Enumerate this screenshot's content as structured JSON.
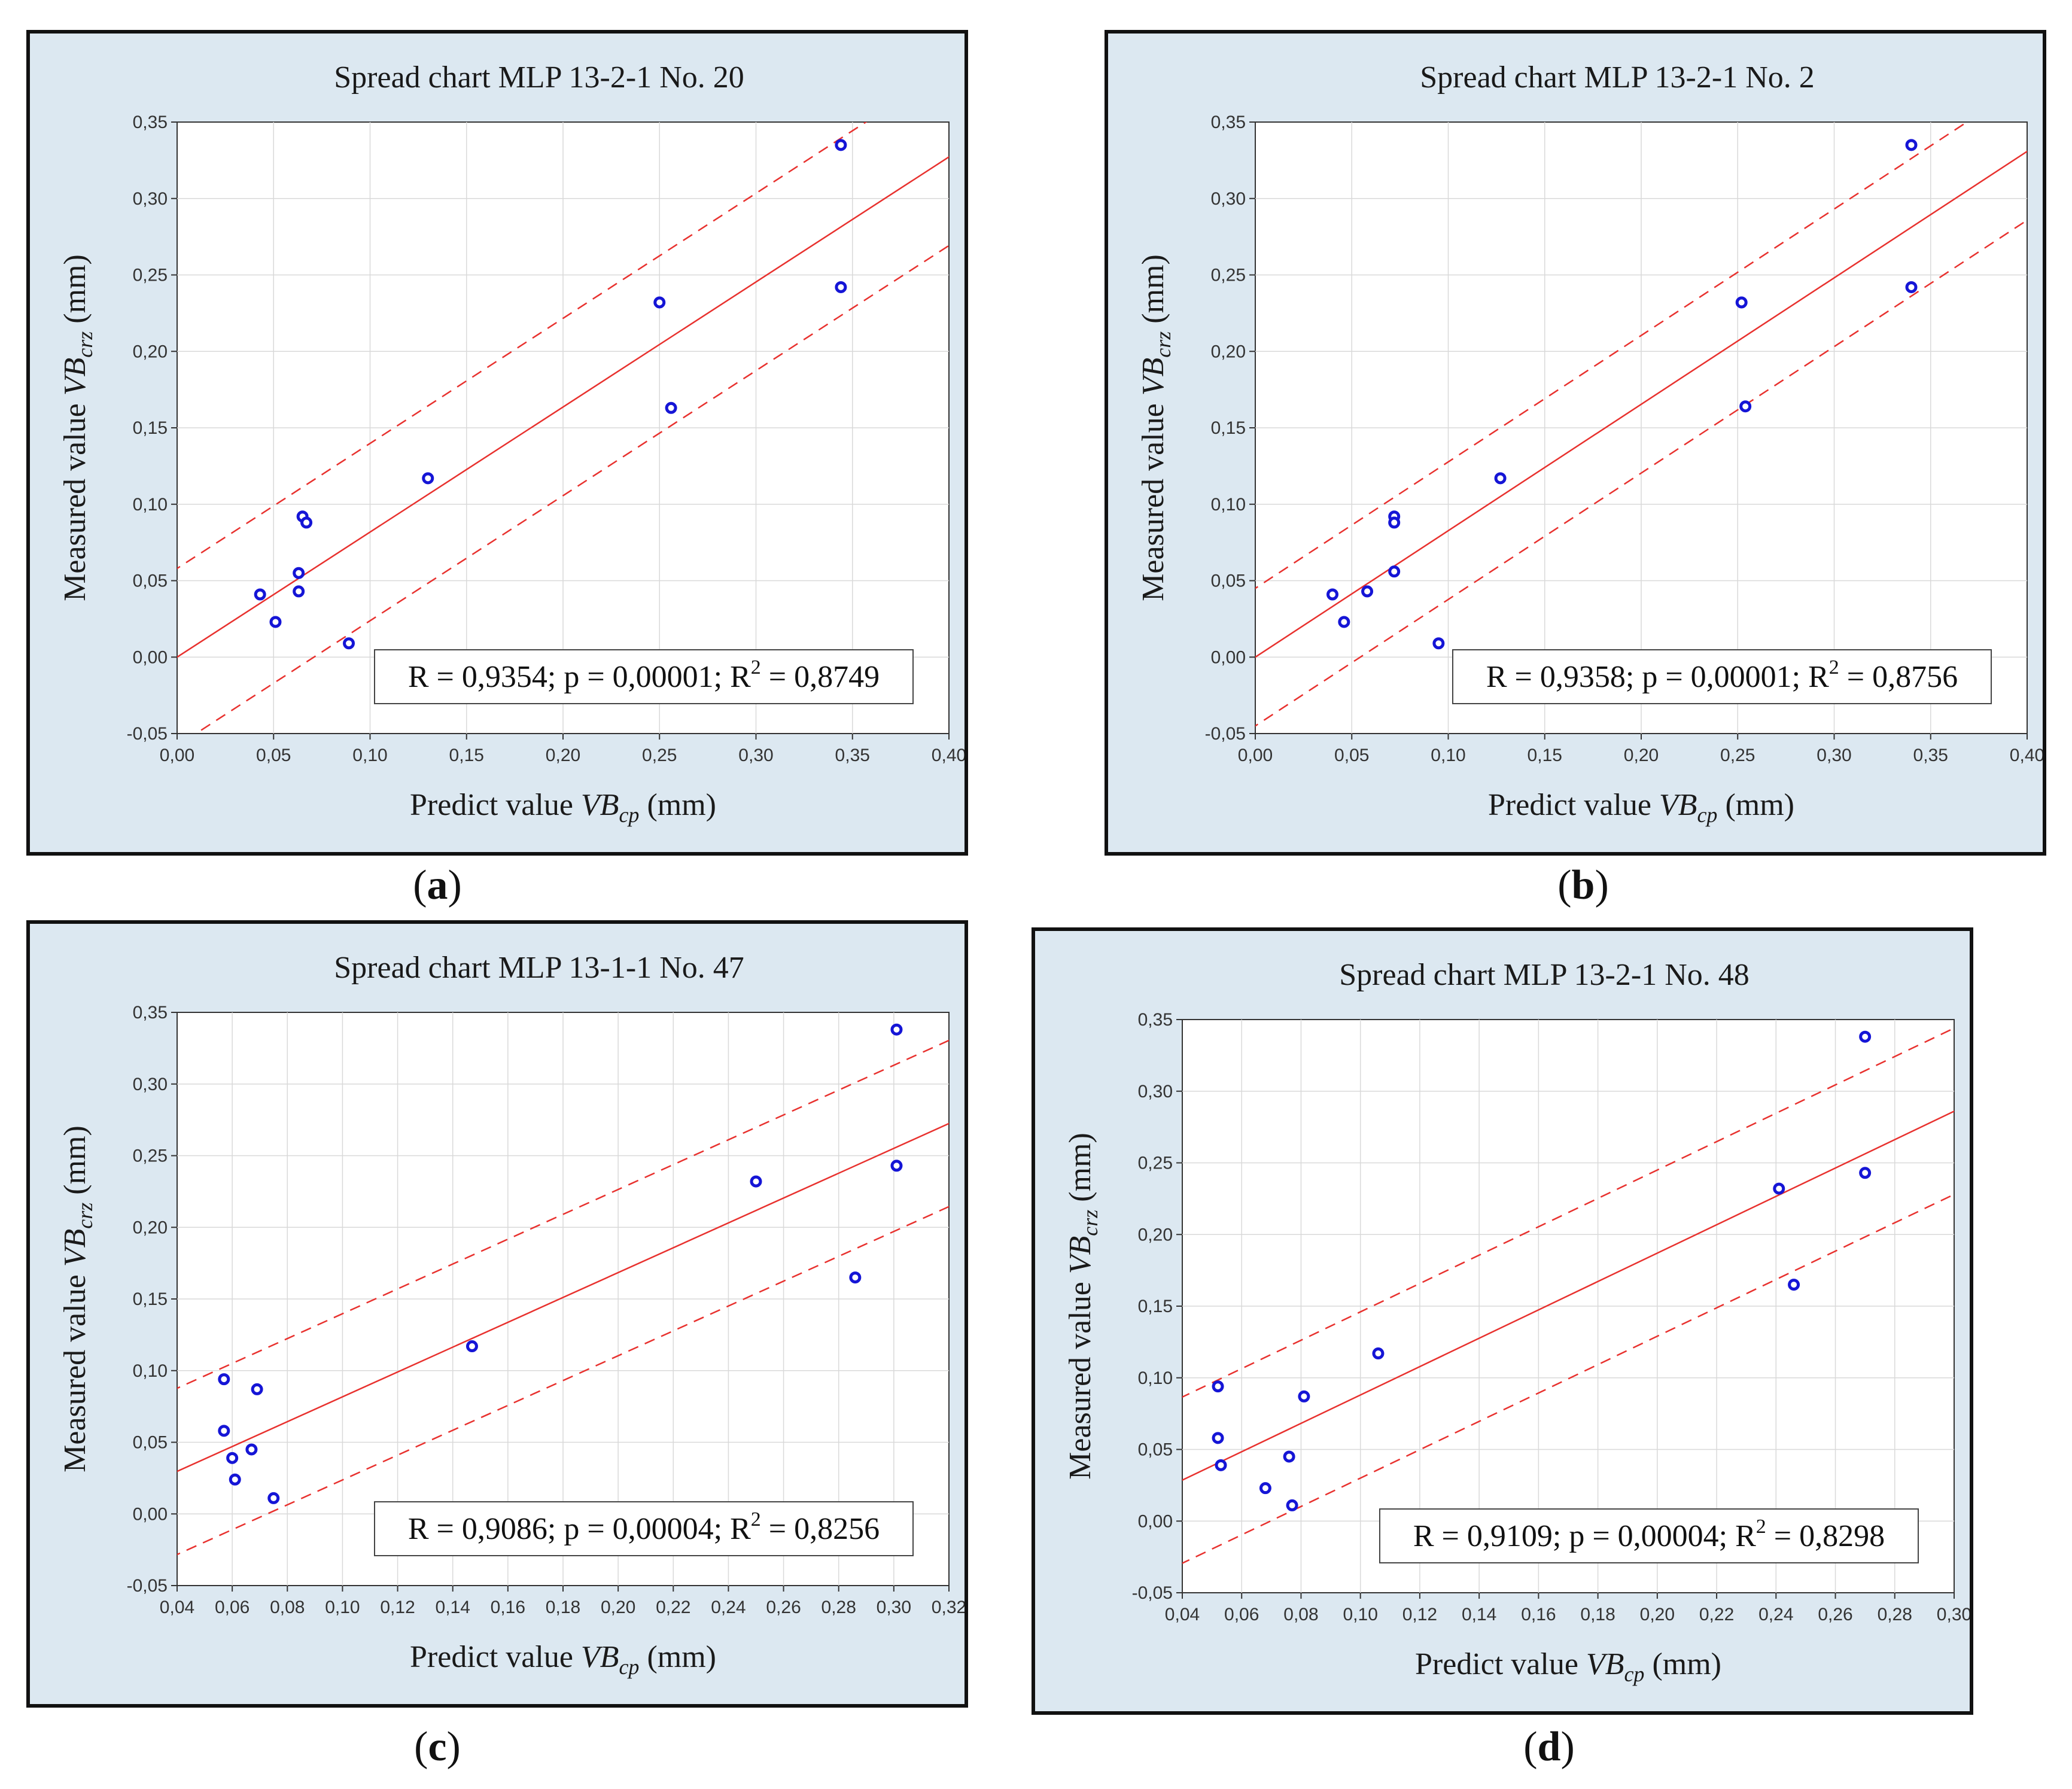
{
  "captions": [
    "a",
    "b",
    "c",
    "d"
  ],
  "chart_data": [
    {
      "type": "scatter",
      "title": "Spread chart MLP 13-2-1 No. 20",
      "xlabel": "Predict value",
      "xlabel_var": "VB",
      "xlabel_sub": "cp",
      "xlabel_unit": "(mm)",
      "ylabel": "Measured value",
      "ylabel_var": "VB",
      "ylabel_sub": "crz",
      "ylabel_unit": "(mm)",
      "xlim": [
        0,
        0.4
      ],
      "ylim": [
        -0.05,
        0.35
      ],
      "xticks": [
        0,
        0.05,
        0.1,
        0.15,
        0.2,
        0.25,
        0.3,
        0.35,
        0.4
      ],
      "yticks": [
        -0.05,
        0,
        0.05,
        0.1,
        0.15,
        0.2,
        0.25,
        0.3,
        0.35
      ],
      "xtick_labels": [
        "0,00",
        "0,05",
        "0,10",
        "0,15",
        "0,20",
        "0,25",
        "0,30",
        "0,35",
        "0,40"
      ],
      "ytick_labels": [
        "-0,05",
        "0,00",
        "0,05",
        "0,10",
        "0,15",
        "0,20",
        "0,25",
        "0,30",
        "0,35"
      ],
      "grid": true,
      "points": [
        [
          0.043,
          0.041
        ],
        [
          0.051,
          0.023
        ],
        [
          0.063,
          0.043
        ],
        [
          0.063,
          0.055
        ],
        [
          0.065,
          0.092
        ],
        [
          0.067,
          0.088
        ],
        [
          0.089,
          0.009
        ],
        [
          0.13,
          0.117
        ],
        [
          0.25,
          0.232
        ],
        [
          0.256,
          0.163
        ],
        [
          0.344,
          0.242
        ],
        [
          0.344,
          0.335
        ]
      ],
      "fit": {
        "slope": 0.818,
        "intercept": 0.0,
        "band_offset": 0.058
      },
      "stats": {
        "R": "0,9354",
        "p": "0,00001",
        "R2": "0,8749"
      },
      "stats_label_r": "R = ",
      "stats_label_p": "; p = ",
      "stats_label_r2": "; R",
      "stats_label_r2_eq": " = ",
      "stats_r2_exp": "2",
      "colors": {
        "points": "#1515d6",
        "fit": "#e8312e"
      }
    },
    {
      "type": "scatter",
      "title": "Spread chart MLP 13-2-1 No. 2",
      "xlabel": "Predict value",
      "xlabel_var": "VB",
      "xlabel_sub": "cp",
      "xlabel_unit": "(mm)",
      "ylabel": "Measured value",
      "ylabel_var": "VB",
      "ylabel_sub": "crz",
      "ylabel_unit": "(mm)",
      "xlim": [
        0,
        0.4
      ],
      "ylim": [
        -0.05,
        0.35
      ],
      "xticks": [
        0,
        0.05,
        0.1,
        0.15,
        0.2,
        0.25,
        0.3,
        0.35,
        0.4
      ],
      "yticks": [
        -0.05,
        0,
        0.05,
        0.1,
        0.15,
        0.2,
        0.25,
        0.3,
        0.35
      ],
      "xtick_labels": [
        "0,00",
        "0,05",
        "0,10",
        "0,15",
        "0,20",
        "0,25",
        "0,30",
        "0,35",
        "0,40"
      ],
      "ytick_labels": [
        "-0,05",
        "0,00",
        "0,05",
        "0,10",
        "0,15",
        "0,20",
        "0,25",
        "0,30",
        "0,35"
      ],
      "grid": true,
      "points": [
        [
          0.04,
          0.041
        ],
        [
          0.046,
          0.023
        ],
        [
          0.058,
          0.043
        ],
        [
          0.072,
          0.056
        ],
        [
          0.072,
          0.092
        ],
        [
          0.072,
          0.088
        ],
        [
          0.095,
          0.009
        ],
        [
          0.127,
          0.117
        ],
        [
          0.252,
          0.232
        ],
        [
          0.254,
          0.164
        ],
        [
          0.34,
          0.242
        ],
        [
          0.34,
          0.335
        ]
      ],
      "fit": {
        "slope": 0.827,
        "intercept": 0.0,
        "band_offset": 0.045
      },
      "stats": {
        "R": "0,9358",
        "p": "0,00001",
        "R2": "0,8756"
      },
      "stats_label_r": "R = ",
      "stats_label_p": "; p = ",
      "stats_label_r2": "; R",
      "stats_label_r2_eq": " = ",
      "stats_r2_exp": "2",
      "colors": {
        "points": "#1515d6",
        "fit": "#e8312e"
      }
    },
    {
      "type": "scatter",
      "title": "Spread chart MLP 13-1-1 No. 47",
      "xlabel": "Predict value",
      "xlabel_var": "VB",
      "xlabel_sub": "cp",
      "xlabel_unit": "(mm)",
      "ylabel": "Measured value",
      "ylabel_var": "VB",
      "ylabel_sub": "crz",
      "ylabel_unit": "(mm)",
      "xlim": [
        0.04,
        0.32
      ],
      "ylim": [
        -0.05,
        0.35
      ],
      "xticks": [
        0.04,
        0.06,
        0.08,
        0.1,
        0.12,
        0.14,
        0.16,
        0.18,
        0.2,
        0.22,
        0.24,
        0.26,
        0.28,
        0.3,
        0.32
      ],
      "yticks": [
        -0.05,
        0,
        0.05,
        0.1,
        0.15,
        0.2,
        0.25,
        0.3,
        0.35
      ],
      "xtick_labels": [
        "0,04",
        "0,06",
        "0,08",
        "0,10",
        "0,12",
        "0,14",
        "0,16",
        "0,18",
        "0,20",
        "0,22",
        "0,24",
        "0,26",
        "0,28",
        "0,30",
        "0,32"
      ],
      "ytick_labels": [
        "-0,05",
        "0,00",
        "0,05",
        "0,10",
        "0,15",
        "0,20",
        "0,25",
        "0,30",
        "0,35"
      ],
      "grid": true,
      "points": [
        [
          0.057,
          0.094
        ],
        [
          0.057,
          0.058
        ],
        [
          0.06,
          0.039
        ],
        [
          0.061,
          0.024
        ],
        [
          0.067,
          0.045
        ],
        [
          0.069,
          0.087
        ],
        [
          0.075,
          0.011
        ],
        [
          0.147,
          0.117
        ],
        [
          0.25,
          0.232
        ],
        [
          0.286,
          0.165
        ],
        [
          0.301,
          0.243
        ],
        [
          0.301,
          0.338
        ]
      ],
      "fit": {
        "slope": 0.867,
        "intercept": -0.005,
        "band_offset": 0.058
      },
      "stats": {
        "R": "0,9086",
        "p": "0,00004",
        "R2": "0,8256"
      },
      "stats_label_r": "R = ",
      "stats_label_p": "; p = ",
      "stats_label_r2": "; R",
      "stats_label_r2_eq": " = ",
      "stats_r2_exp": "2",
      "colors": {
        "points": "#1515d6",
        "fit": "#e8312e"
      }
    },
    {
      "type": "scatter",
      "title": "Spread chart MLP 13-2-1 No. 48",
      "xlabel": "Predict value",
      "xlabel_var": "VB",
      "xlabel_sub": "cp",
      "xlabel_unit": "(mm)",
      "ylabel": "Measured value",
      "ylabel_var": "VB",
      "ylabel_sub": "crz",
      "ylabel_unit": "(mm)",
      "xlim": [
        0.04,
        0.3
      ],
      "ylim": [
        -0.05,
        0.35
      ],
      "xticks": [
        0.04,
        0.06,
        0.08,
        0.1,
        0.12,
        0.14,
        0.16,
        0.18,
        0.2,
        0.22,
        0.24,
        0.26,
        0.28,
        0.3
      ],
      "yticks": [
        -0.05,
        0,
        0.05,
        0.1,
        0.15,
        0.2,
        0.25,
        0.3,
        0.35
      ],
      "xtick_labels": [
        "0,04",
        "0,06",
        "0,08",
        "0,10",
        "0,12",
        "0,14",
        "0,16",
        "0,18",
        "0,20",
        "0,22",
        "0,24",
        "0,26",
        "0,28",
        "0,30"
      ],
      "ytick_labels": [
        "-0,05",
        "0,00",
        "0,05",
        "0,10",
        "0,15",
        "0,20",
        "0,25",
        "0,30",
        "0,35"
      ],
      "grid": true,
      "points": [
        [
          0.052,
          0.094
        ],
        [
          0.052,
          0.058
        ],
        [
          0.053,
          0.039
        ],
        [
          0.068,
          0.023
        ],
        [
          0.076,
          0.045
        ],
        [
          0.077,
          0.011
        ],
        [
          0.081,
          0.087
        ],
        [
          0.106,
          0.117
        ],
        [
          0.241,
          0.232
        ],
        [
          0.246,
          0.165
        ],
        [
          0.27,
          0.243
        ],
        [
          0.27,
          0.338
        ]
      ],
      "fit": {
        "slope": 0.99,
        "intercept": -0.011,
        "band_offset": 0.058
      },
      "stats": {
        "R": "0,9109",
        "p": "0,00004",
        "R2": "0,8298"
      },
      "stats_label_r": "R = ",
      "stats_label_p": "; p = ",
      "stats_label_r2": "; R",
      "stats_label_r2_eq": " = ",
      "stats_r2_exp": "2",
      "colors": {
        "points": "#1515d6",
        "fit": "#e8312e"
      }
    }
  ]
}
